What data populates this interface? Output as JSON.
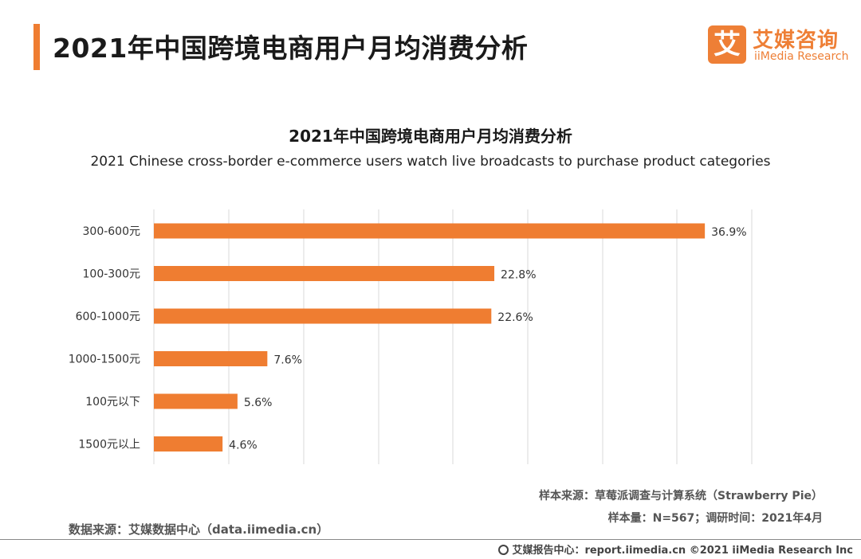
{
  "header": {
    "title": "2021年中国跨境电商用户月均消费分析",
    "logo_mark": "艾",
    "logo_cn": "艾媒咨询",
    "logo_en": "iiMedia Research"
  },
  "colors": {
    "accent": "#ef7d31",
    "bar": "#ef7d31",
    "grid": "#d9d9d9"
  },
  "chart_data": {
    "type": "bar",
    "orientation": "horizontal",
    "title": "2021年中国跨境电商用户月均消费分析",
    "subtitle": "2021 Chinese cross-border e-commerce users watch live broadcasts to purchase product categories",
    "categories": [
      "300-600元",
      "100-300元",
      "600-1000元",
      "1000-1500元",
      "100元以下",
      "1500元以上"
    ],
    "values": [
      36.9,
      22.8,
      22.6,
      7.6,
      5.6,
      4.6
    ],
    "value_labels": [
      "36.9%",
      "22.8%",
      "22.6%",
      "7.6%",
      "5.6%",
      "4.6%"
    ],
    "xlim": [
      0,
      40
    ],
    "grid": true,
    "legend": "none"
  },
  "notes": {
    "sample_source": "样本来源：草莓派调查与计算系统（Strawberry Pie）",
    "sample_info": "样本量：N=567；调研时间：2021年4月",
    "data_source": "数据来源：艾媒数据中心（data.iimedia.cn）"
  },
  "footer": {
    "text": "艾媒报告中心：report.iimedia.cn  ©2021  iiMedia Research  Inc"
  }
}
